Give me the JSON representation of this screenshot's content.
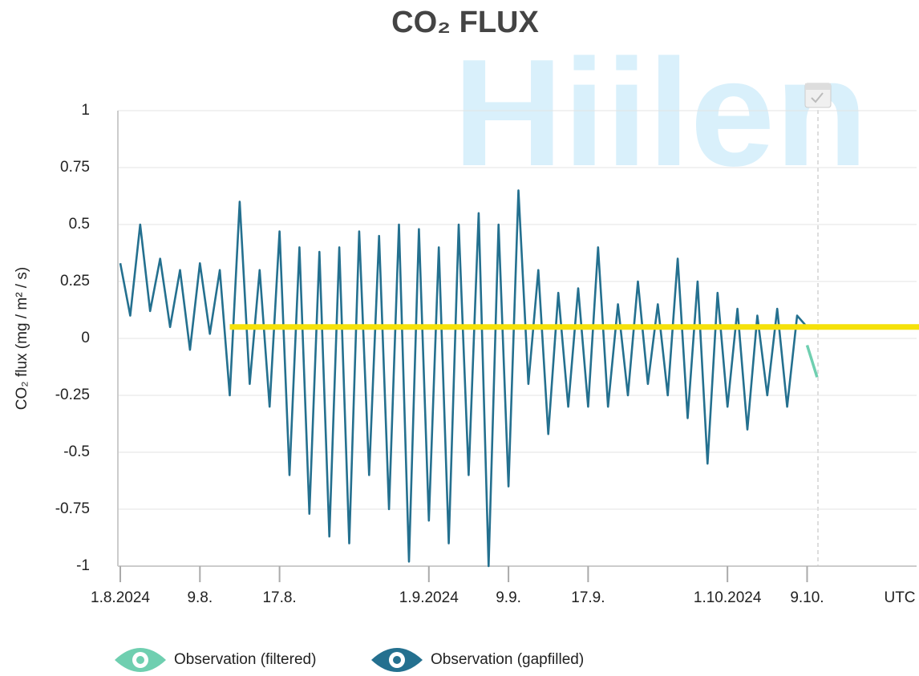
{
  "chart_data": {
    "type": "line",
    "title": "CO₂ FLUX",
    "watermark": "Hiilen",
    "y_label": "CO₂ flux (mg / m² / s)",
    "x_unit_label": "UTC",
    "xlim": [
      "2024-08-01",
      "2024-10-20"
    ],
    "xticks": [
      {
        "value": "2024-08-01",
        "label": "1.8.2024"
      },
      {
        "value": "2024-08-09",
        "label": "9.8."
      },
      {
        "value": "2024-08-17",
        "label": "17.8."
      },
      {
        "value": "2024-09-01",
        "label": "1.9.2024"
      },
      {
        "value": "2024-09-09",
        "label": "9.9."
      },
      {
        "value": "2024-09-17",
        "label": "17.9."
      },
      {
        "value": "2024-10-01",
        "label": "1.10.2024"
      },
      {
        "value": "2024-10-09",
        "label": "9.10."
      }
    ],
    "ylim": [
      -1,
      1
    ],
    "yticks": [
      1,
      0.75,
      0.5,
      0.25,
      0,
      -0.25,
      -0.5,
      -0.75,
      -1
    ],
    "grid": true,
    "x": [
      "2024-08-01",
      "2024-08-02",
      "2024-08-03",
      "2024-08-04",
      "2024-08-05",
      "2024-08-06",
      "2024-08-07",
      "2024-08-08",
      "2024-08-09",
      "2024-08-10",
      "2024-08-11",
      "2024-08-12",
      "2024-08-13",
      "2024-08-14",
      "2024-08-15",
      "2024-08-16",
      "2024-08-17",
      "2024-08-18",
      "2024-08-19",
      "2024-08-20",
      "2024-08-21",
      "2024-08-22",
      "2024-08-23",
      "2024-08-24",
      "2024-08-25",
      "2024-08-26",
      "2024-08-27",
      "2024-08-28",
      "2024-08-29",
      "2024-08-30",
      "2024-08-31",
      "2024-09-01",
      "2024-09-02",
      "2024-09-03",
      "2024-09-04",
      "2024-09-05",
      "2024-09-06",
      "2024-09-07",
      "2024-09-08",
      "2024-09-09",
      "2024-09-10",
      "2024-09-11",
      "2024-09-12",
      "2024-09-13",
      "2024-09-14",
      "2024-09-15",
      "2024-09-16",
      "2024-09-17",
      "2024-09-18",
      "2024-09-19",
      "2024-09-20",
      "2024-09-21",
      "2024-09-22",
      "2024-09-23",
      "2024-09-24",
      "2024-09-25",
      "2024-09-26",
      "2024-09-27",
      "2024-09-28",
      "2024-09-29",
      "2024-09-30",
      "2024-10-01",
      "2024-10-02",
      "2024-10-03",
      "2024-10-04",
      "2024-10-05",
      "2024-10-06",
      "2024-10-07",
      "2024-10-08",
      "2024-10-09",
      "2024-10-10"
    ],
    "series": [
      {
        "name": "Observation (filtered)",
        "color": "#6fcfb0",
        "values": [
          null,
          null,
          null,
          null,
          null,
          null,
          null,
          null,
          null,
          null,
          null,
          null,
          null,
          null,
          null,
          null,
          null,
          null,
          null,
          null,
          null,
          null,
          null,
          null,
          null,
          null,
          null,
          null,
          null,
          null,
          null,
          null,
          null,
          null,
          null,
          null,
          null,
          null,
          null,
          null,
          null,
          null,
          null,
          null,
          null,
          null,
          null,
          null,
          null,
          null,
          null,
          null,
          null,
          null,
          null,
          null,
          null,
          null,
          null,
          null,
          null,
          null,
          null,
          null,
          null,
          null,
          null,
          null,
          null,
          -0.03,
          -0.17
        ]
      },
      {
        "name": "Observation (gapfilled)",
        "color": "#24708f",
        "values": [
          0.33,
          0.1,
          0.5,
          0.12,
          0.35,
          0.05,
          0.3,
          -0.05,
          0.33,
          0.02,
          0.3,
          -0.25,
          0.6,
          -0.2,
          0.3,
          -0.3,
          0.47,
          -0.6,
          0.4,
          -0.77,
          0.38,
          -0.87,
          0.4,
          -0.9,
          0.47,
          -0.6,
          0.45,
          -0.75,
          0.5,
          -0.98,
          0.48,
          -0.8,
          0.4,
          -0.9,
          0.5,
          -0.6,
          0.55,
          -1,
          0.5,
          -0.65,
          0.65,
          -0.2,
          0.3,
          -0.42,
          0.2,
          -0.3,
          0.22,
          -0.3,
          0.4,
          -0.3,
          0.15,
          -0.25,
          0.25,
          -0.2,
          0.15,
          -0.25,
          0.35,
          -0.35,
          0.25,
          -0.55,
          0.2,
          -0.3,
          0.13,
          -0.4,
          0.1,
          -0.25,
          0.13,
          -0.3,
          0.1,
          0.05,
          null
        ]
      }
    ],
    "reference_line": {
      "value": 0.05,
      "x_start": "2024-08-12",
      "color": "#f5e10a"
    }
  }
}
